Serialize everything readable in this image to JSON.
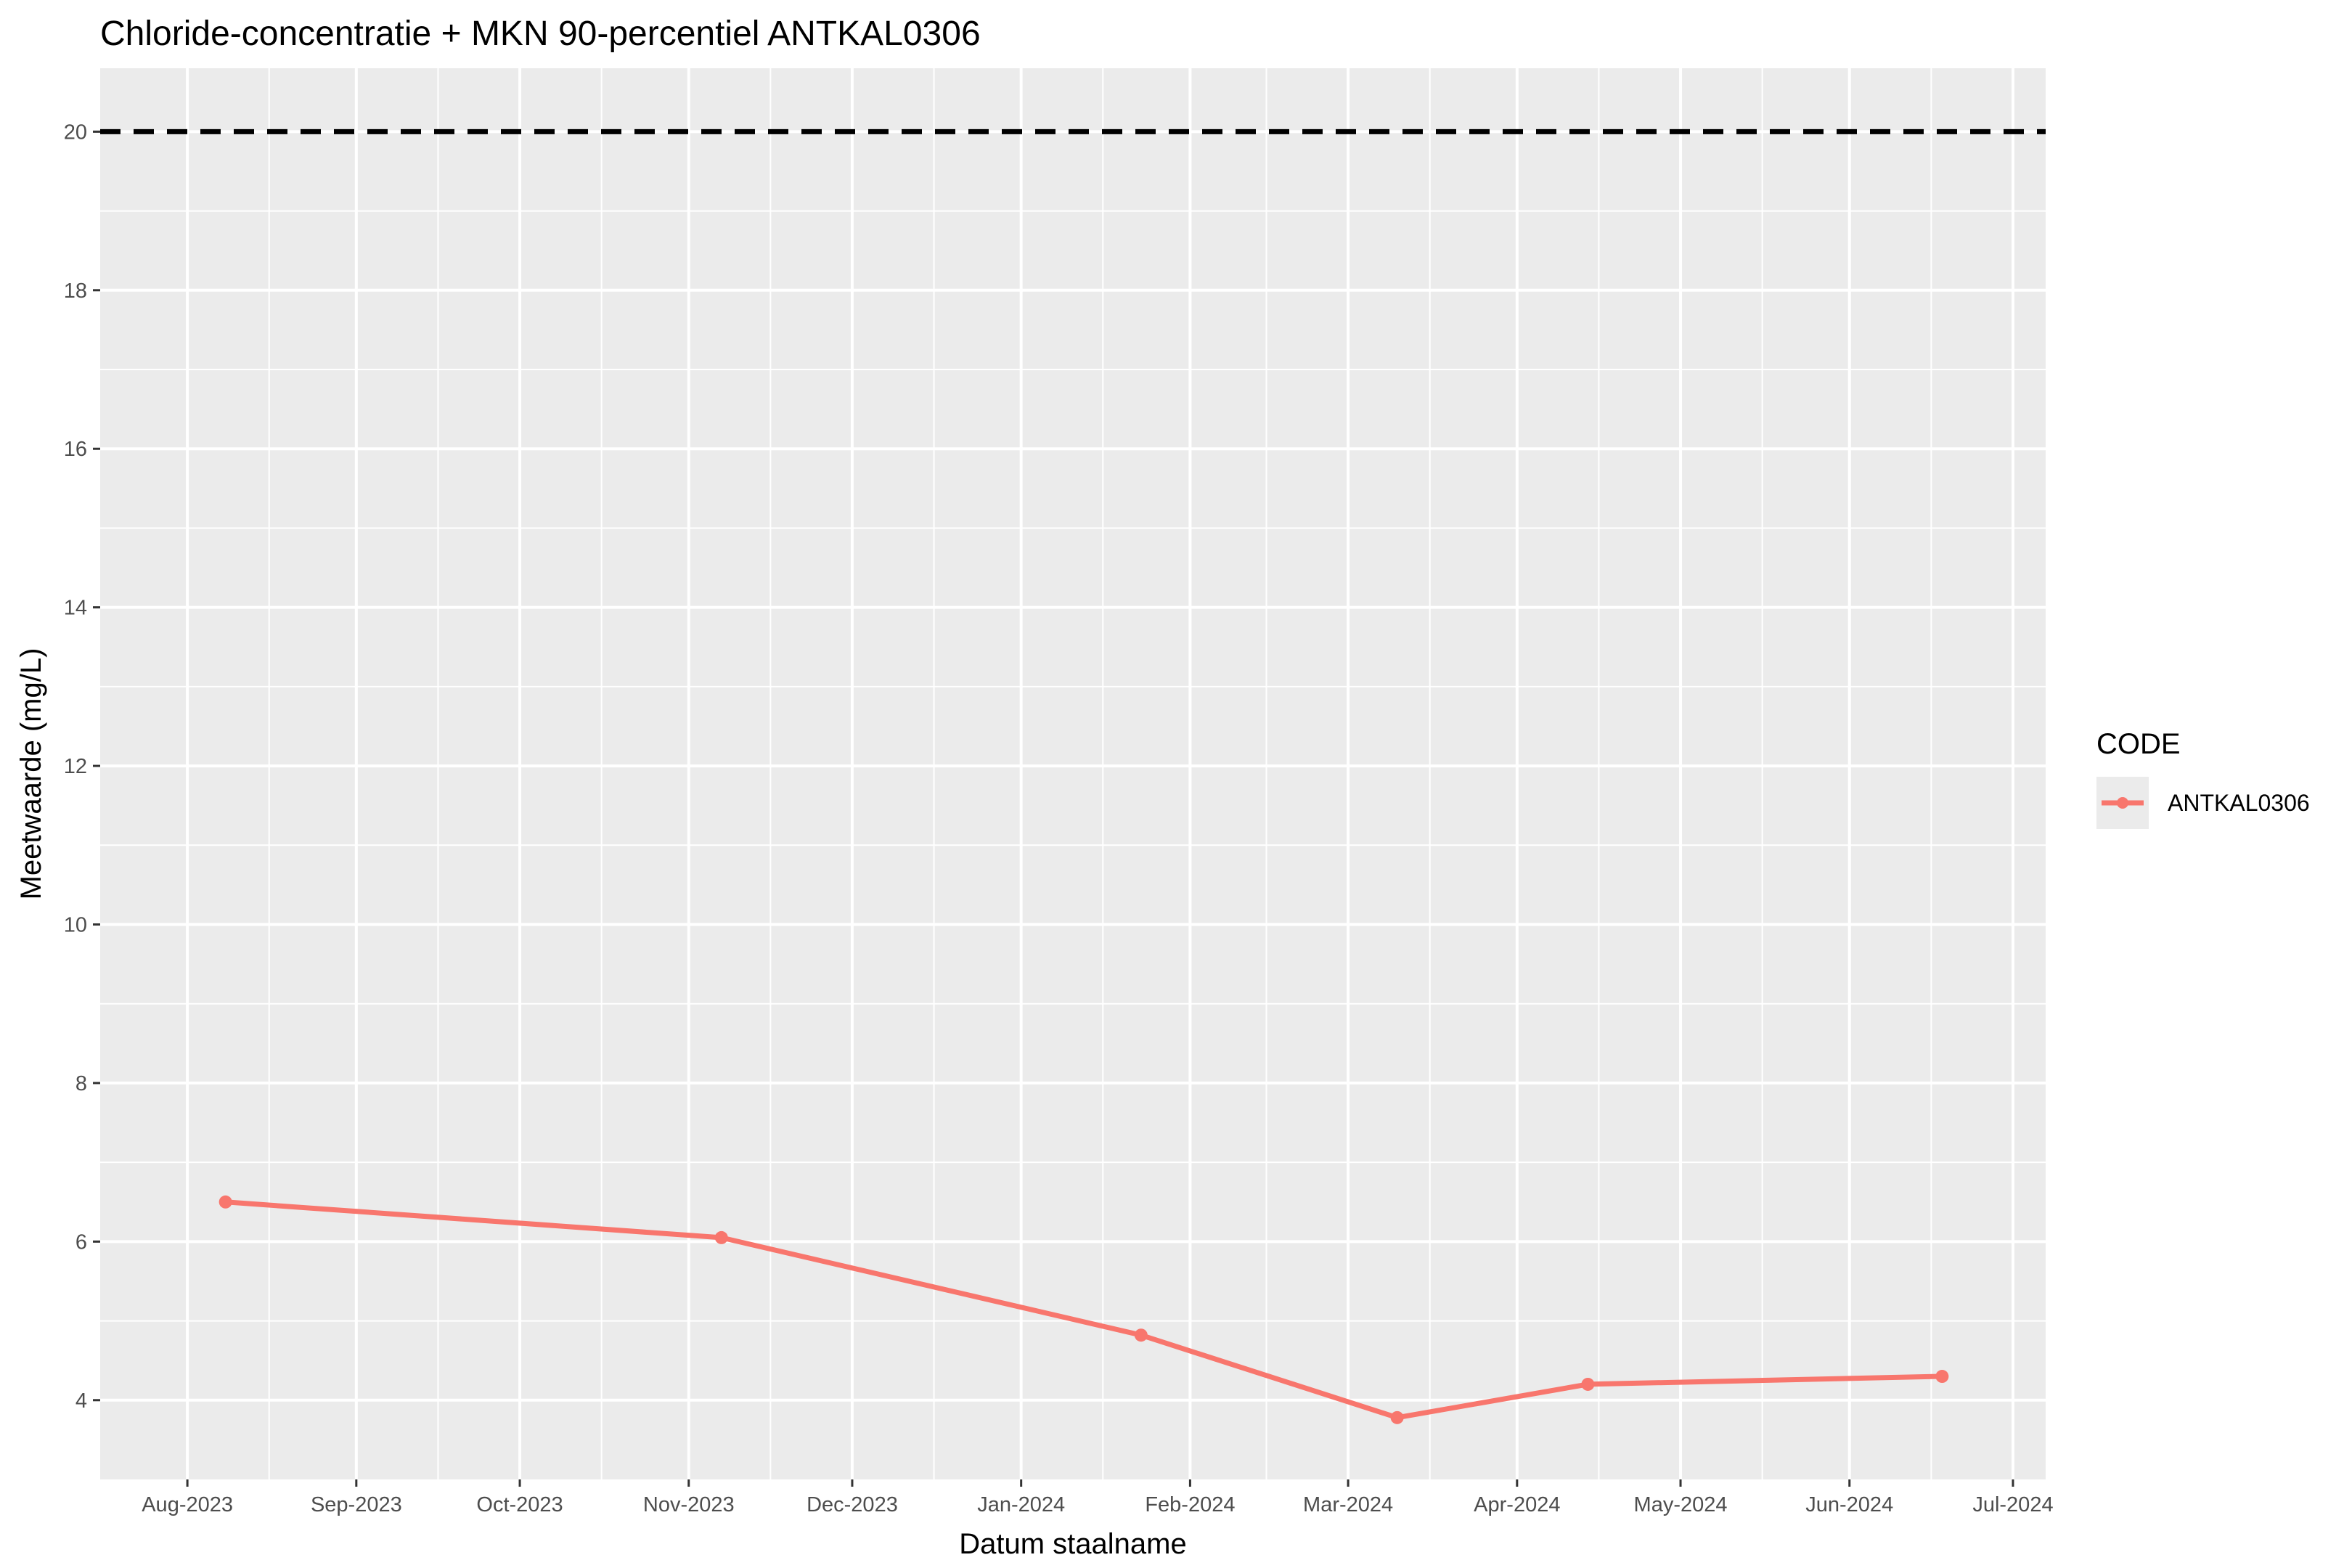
{
  "chart_data": {
    "type": "line",
    "title": "Chloride-concentratie + MKN 90-percentiel ANTKAL0306",
    "xlabel": "Datum staalname",
    "ylabel": "Meetwaarde (mg/L)",
    "x_tick_labels": [
      "Aug-2023",
      "Sep-2023",
      "Oct-2023",
      "Nov-2023",
      "Dec-2023",
      "Jan-2024",
      "Feb-2024",
      "Mar-2024",
      "Apr-2024",
      "May-2024",
      "Jun-2024",
      "Jul-2024"
    ],
    "y_ticks": [
      4,
      6,
      8,
      10,
      12,
      14,
      16,
      18,
      20
    ],
    "xlim": [
      "2023-07-16",
      "2024-07-07"
    ],
    "ylim": [
      3.0,
      20.8
    ],
    "grid": true,
    "legend": {
      "title": "CODE",
      "position": "right"
    },
    "series": [
      {
        "name": "ANTKAL0306",
        "color": "#F8766D",
        "x": [
          "2023-08-08",
          "2023-11-07",
          "2024-01-23",
          "2024-03-10",
          "2024-04-14",
          "2024-06-18"
        ],
        "y": [
          6.5,
          6.05,
          4.82,
          3.78,
          4.2,
          4.3
        ]
      }
    ],
    "reference_line": {
      "value": 20,
      "style": "dashed",
      "color": "#000000"
    },
    "panel_color": "#EBEBEB",
    "grid_color": "#FFFFFF"
  }
}
